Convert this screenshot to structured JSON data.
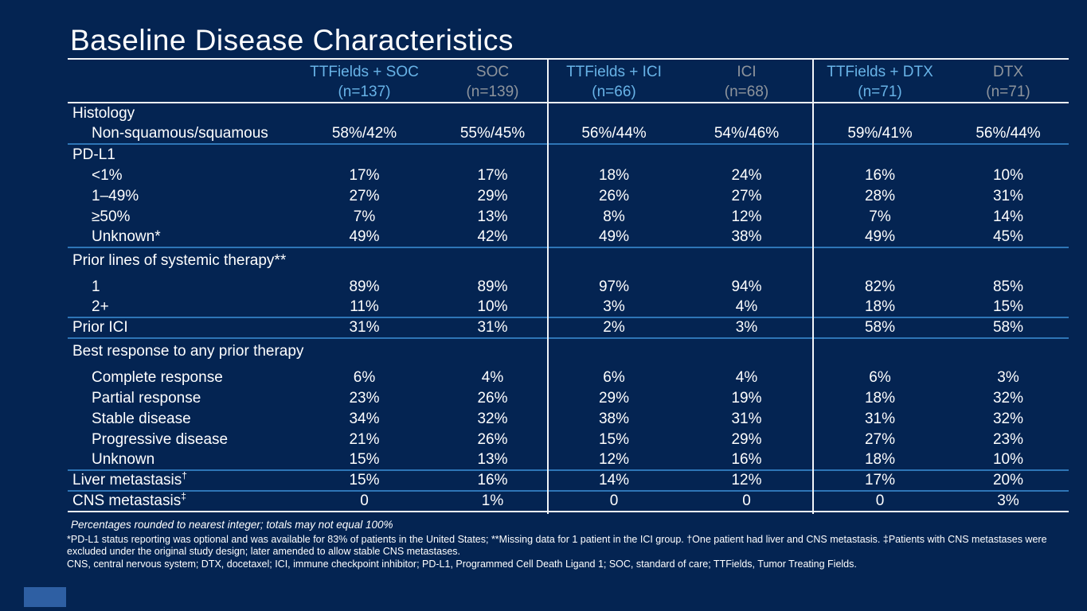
{
  "slide": {
    "title": "Baseline Disease Characteristics",
    "background_color": "#042452",
    "divider_blue": "#2e75b6",
    "header_blue": "#68b3e7",
    "header_gray": "#8e949c"
  },
  "table": {
    "columns": [
      {
        "label": "TTFields + SOC",
        "sublabel": "(n=137)",
        "style": "blue"
      },
      {
        "label": "SOC",
        "sublabel": "(n=139)",
        "style": "gray"
      },
      {
        "label": "TTFields + ICI",
        "sublabel": "(n=66)",
        "style": "blue"
      },
      {
        "label": "ICI",
        "sublabel": "(n=68)",
        "style": "gray"
      },
      {
        "label": "TTFields + DTX",
        "sublabel": "(n=71)",
        "style": "blue"
      },
      {
        "label": "DTX",
        "sublabel": "(n=71)",
        "style": "gray"
      }
    ],
    "rows": [
      {
        "label": "Histology",
        "type": "section",
        "values": [
          "",
          "",
          "",
          "",
          "",
          ""
        ]
      },
      {
        "label": "Non-squamous/squamous",
        "type": "sub",
        "divider": "blue",
        "values": [
          "58%/42%",
          "55%/45%",
          "56%/44%",
          "54%/46%",
          "59%/41%",
          "56%/44%"
        ]
      },
      {
        "label": "PD-L1",
        "type": "section",
        "values": [
          "",
          "",
          "",
          "",
          "",
          ""
        ]
      },
      {
        "label": "<1%",
        "type": "sub",
        "values": [
          "17%",
          "17%",
          "18%",
          "24%",
          "16%",
          "10%"
        ]
      },
      {
        "label": "1–49%",
        "type": "sub",
        "values": [
          "27%",
          "29%",
          "26%",
          "27%",
          "28%",
          "31%"
        ]
      },
      {
        "label": "≥50%",
        "type": "sub",
        "values": [
          "7%",
          "13%",
          "8%",
          "12%",
          "7%",
          "14%"
        ]
      },
      {
        "label": "Unknown*",
        "type": "sub",
        "divider": "blue",
        "values": [
          "49%",
          "42%",
          "49%",
          "38%",
          "49%",
          "45%"
        ]
      },
      {
        "label": "Prior lines of systemic therapy**",
        "type": "section",
        "gap_after": true,
        "values": [
          "",
          "",
          "",
          "",
          "",
          ""
        ]
      },
      {
        "label": "1",
        "type": "sub",
        "values": [
          "89%",
          "89%",
          "97%",
          "94%",
          "82%",
          "85%"
        ]
      },
      {
        "label": "2+",
        "type": "sub",
        "divider": "blue",
        "values": [
          "11%",
          "10%",
          "3%",
          "4%",
          "18%",
          "15%"
        ]
      },
      {
        "label": "Prior ICI",
        "type": "flat",
        "divider": "blue",
        "values": [
          "31%",
          "31%",
          "2%",
          "3%",
          "58%",
          "58%"
        ]
      },
      {
        "label": "Best response to any prior therapy",
        "type": "section",
        "gap_after": true,
        "values": [
          "",
          "",
          "",
          "",
          "",
          ""
        ]
      },
      {
        "label": "Complete response",
        "type": "sub",
        "values": [
          "6%",
          "4%",
          "6%",
          "4%",
          "6%",
          "3%"
        ]
      },
      {
        "label": "Partial response",
        "type": "sub",
        "values": [
          "23%",
          "26%",
          "29%",
          "19%",
          "18%",
          "32%"
        ]
      },
      {
        "label": "Stable disease",
        "type": "sub",
        "values": [
          "34%",
          "32%",
          "38%",
          "31%",
          "31%",
          "32%"
        ]
      },
      {
        "label": "Progressive disease",
        "type": "sub",
        "values": [
          "21%",
          "26%",
          "15%",
          "29%",
          "27%",
          "23%"
        ]
      },
      {
        "label": "Unknown",
        "type": "sub",
        "divider": "blue",
        "values": [
          "15%",
          "13%",
          "12%",
          "16%",
          "18%",
          "10%"
        ]
      },
      {
        "label": "Liver metastasis",
        "label_sup": "†",
        "type": "flat",
        "divider": "blue",
        "values": [
          "15%",
          "16%",
          "14%",
          "12%",
          "17%",
          "20%"
        ]
      },
      {
        "label": "CNS metastasis",
        "label_sup": "‡",
        "type": "flat",
        "divider": "white",
        "values": [
          "0",
          "1%",
          "0",
          "0",
          "0",
          "3%"
        ]
      }
    ]
  },
  "footnotes": {
    "rounding_note": "Percentages rounded to nearest integer; totals may not equal 100%",
    "note_line1": "*PD-L1 status reporting was optional and was available for 83% of patients in the United States; **Missing data for 1 patient in the ICI group. †One patient had liver and CNS metastasis. ‡Patients with CNS metastases were",
    "note_line2": "excluded under the original study design; later amended to allow stable CNS metastases.",
    "abbreviations": "CNS, central nervous system; DTX, docetaxel; ICI, immune checkpoint inhibitor; PD-L1, Programmed Cell Death Ligand 1; SOC, standard of care; TTFields, Tumor Treating Fields."
  }
}
